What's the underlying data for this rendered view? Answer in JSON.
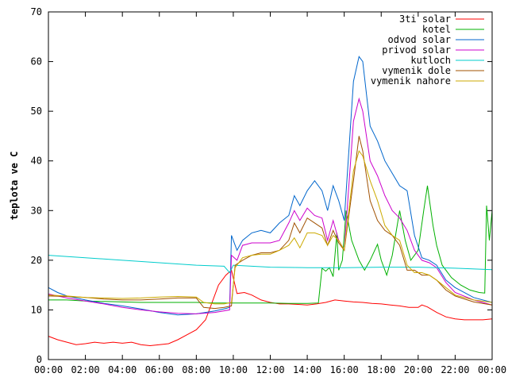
{
  "chart_data": {
    "type": "line",
    "title": "",
    "xlabel": "",
    "ylabel": "teplota ve C",
    "xlim": [
      0,
      24
    ],
    "ylim": [
      0,
      70
    ],
    "x_ticks": [
      "00:00",
      "02:00",
      "04:00",
      "06:00",
      "08:00",
      "10:00",
      "12:00",
      "14:00",
      "16:00",
      "18:00",
      "20:00",
      "22:00",
      "00:00"
    ],
    "y_ticks": [
      "0",
      "10",
      "20",
      "30",
      "40",
      "50",
      "60",
      "70"
    ],
    "grid": false,
    "legend_position": "top-right",
    "x_unit": "hours",
    "series": [
      {
        "name": "3ti solar",
        "color": "#ff0000",
        "points": [
          [
            0,
            4.7
          ],
          [
            0.5,
            4
          ],
          [
            1,
            3.5
          ],
          [
            1.5,
            3
          ],
          [
            2,
            3.2
          ],
          [
            2.5,
            3.5
          ],
          [
            3,
            3.3
          ],
          [
            3.5,
            3.5
          ],
          [
            4,
            3.3
          ],
          [
            4.5,
            3.5
          ],
          [
            5,
            3
          ],
          [
            5.5,
            2.8
          ],
          [
            6,
            3
          ],
          [
            6.5,
            3.2
          ],
          [
            7,
            4
          ],
          [
            7.5,
            5
          ],
          [
            8,
            6
          ],
          [
            8.5,
            8
          ],
          [
            8.8,
            11
          ],
          [
            9.2,
            15
          ],
          [
            9.6,
            17
          ],
          [
            9.9,
            18
          ],
          [
            10.2,
            13.3
          ],
          [
            10.6,
            13.5
          ],
          [
            11,
            13
          ],
          [
            11.5,
            12
          ],
          [
            12,
            11.5
          ],
          [
            12.5,
            11.2
          ],
          [
            13,
            11.2
          ],
          [
            13.5,
            11.1
          ],
          [
            14,
            11
          ],
          [
            14.5,
            11.2
          ],
          [
            15,
            11.5
          ],
          [
            15.5,
            12
          ],
          [
            16,
            11.8
          ],
          [
            16.5,
            11.6
          ],
          [
            17,
            11.5
          ],
          [
            17.5,
            11.3
          ],
          [
            18,
            11.2
          ],
          [
            18.5,
            11
          ],
          [
            19,
            10.8
          ],
          [
            19.5,
            10.5
          ],
          [
            20,
            10.5
          ],
          [
            20.2,
            11
          ],
          [
            20.5,
            10.6
          ],
          [
            21,
            9.5
          ],
          [
            21.5,
            8.6
          ],
          [
            22,
            8.2
          ],
          [
            22.5,
            8
          ],
          [
            23,
            8
          ],
          [
            23.5,
            8
          ],
          [
            24,
            8.2
          ]
        ]
      },
      {
        "name": "kotel",
        "color": "#00b000",
        "points": [
          [
            0,
            12
          ],
          [
            1,
            12
          ],
          [
            2,
            11.8
          ],
          [
            3,
            11.7
          ],
          [
            4,
            11.6
          ],
          [
            5,
            11.5
          ],
          [
            6,
            11.5
          ],
          [
            7,
            11.5
          ],
          [
            8,
            11.5
          ],
          [
            9,
            11.4
          ],
          [
            10,
            11.4
          ],
          [
            11,
            11.4
          ],
          [
            12,
            11.4
          ],
          [
            13,
            11.3
          ],
          [
            14,
            11.3
          ],
          [
            14.6,
            11.4
          ],
          [
            14.8,
            18.4
          ],
          [
            15,
            17.8
          ],
          [
            15.2,
            18.5
          ],
          [
            15.4,
            16.7
          ],
          [
            15.6,
            25.5
          ],
          [
            15.7,
            18
          ],
          [
            15.9,
            20
          ],
          [
            16.1,
            30
          ],
          [
            16.4,
            24
          ],
          [
            16.8,
            20
          ],
          [
            17.1,
            18
          ],
          [
            17.4,
            20
          ],
          [
            17.8,
            23.2
          ],
          [
            18,
            20
          ],
          [
            18.3,
            17
          ],
          [
            18.6,
            21
          ],
          [
            19,
            30
          ],
          [
            19.3,
            24
          ],
          [
            19.6,
            20
          ],
          [
            20,
            22
          ],
          [
            20.3,
            30
          ],
          [
            20.5,
            35
          ],
          [
            20.8,
            27
          ],
          [
            21,
            23
          ],
          [
            21.3,
            19
          ],
          [
            21.8,
            16.5
          ],
          [
            22.3,
            15
          ],
          [
            22.8,
            14
          ],
          [
            23.3,
            13.5
          ],
          [
            23.6,
            13.4
          ],
          [
            23.7,
            31
          ],
          [
            23.85,
            24
          ],
          [
            24,
            30
          ],
          [
            24.2,
            25
          ]
        ]
      },
      {
        "name": "odvod solar",
        "color": "#0066cc",
        "points": [
          [
            0,
            14.5
          ],
          [
            0.5,
            13.5
          ],
          [
            1,
            12.8
          ],
          [
            2,
            12
          ],
          [
            3,
            11.3
          ],
          [
            4,
            10.8
          ],
          [
            5,
            10.2
          ],
          [
            6,
            9.5
          ],
          [
            7,
            9.0
          ],
          [
            8,
            9.2
          ],
          [
            9,
            9.8
          ],
          [
            9.6,
            10.3
          ],
          [
            9.8,
            10.5
          ],
          [
            9.9,
            25
          ],
          [
            10.2,
            22
          ],
          [
            10.5,
            24
          ],
          [
            11,
            25.5
          ],
          [
            11.5,
            26
          ],
          [
            12,
            25.5
          ],
          [
            12.5,
            27.5
          ],
          [
            13,
            29
          ],
          [
            13.3,
            33
          ],
          [
            13.6,
            31
          ],
          [
            14,
            34
          ],
          [
            14.4,
            36
          ],
          [
            14.8,
            34
          ],
          [
            15.1,
            30
          ],
          [
            15.4,
            35
          ],
          [
            15.7,
            32
          ],
          [
            16,
            28
          ],
          [
            16.5,
            56
          ],
          [
            16.8,
            61
          ],
          [
            17,
            60
          ],
          [
            17.4,
            47
          ],
          [
            17.8,
            44
          ],
          [
            18.2,
            40
          ],
          [
            18.6,
            37.5
          ],
          [
            19,
            35
          ],
          [
            19.4,
            34
          ],
          [
            19.8,
            25
          ],
          [
            20.2,
            20.5
          ],
          [
            20.6,
            20
          ],
          [
            21,
            19
          ],
          [
            21.5,
            16
          ],
          [
            22,
            14.5
          ],
          [
            23,
            12.5
          ],
          [
            24,
            11.5
          ],
          [
            24.4,
            11.5
          ]
        ]
      },
      {
        "name": "privod solar",
        "color": "#cc00cc",
        "points": [
          [
            0,
            13.2
          ],
          [
            0.5,
            12.8
          ],
          [
            1,
            12.4
          ],
          [
            2,
            11.8
          ],
          [
            3,
            11.2
          ],
          [
            4,
            10.5
          ],
          [
            5,
            10
          ],
          [
            6,
            9.6
          ],
          [
            7,
            9.3
          ],
          [
            8,
            9.2
          ],
          [
            9,
            9.5
          ],
          [
            9.8,
            10
          ],
          [
            9.9,
            21
          ],
          [
            10.2,
            20
          ],
          [
            10.5,
            23
          ],
          [
            11,
            23.5
          ],
          [
            11.5,
            23.5
          ],
          [
            12,
            23.5
          ],
          [
            12.5,
            24
          ],
          [
            13,
            27.5
          ],
          [
            13.3,
            30
          ],
          [
            13.6,
            28
          ],
          [
            14,
            30.5
          ],
          [
            14.4,
            29
          ],
          [
            14.8,
            28.5
          ],
          [
            15.1,
            24
          ],
          [
            15.4,
            28
          ],
          [
            15.7,
            24
          ],
          [
            16,
            22
          ],
          [
            16.5,
            48
          ],
          [
            16.8,
            52.5
          ],
          [
            17,
            50
          ],
          [
            17.4,
            40
          ],
          [
            17.8,
            37
          ],
          [
            18.2,
            33
          ],
          [
            18.6,
            30
          ],
          [
            19,
            28.5
          ],
          [
            19.4,
            26
          ],
          [
            19.8,
            22
          ],
          [
            20.2,
            20
          ],
          [
            20.6,
            19.5
          ],
          [
            21,
            18.5
          ],
          [
            21.5,
            15.5
          ],
          [
            22,
            13.5
          ],
          [
            23,
            12
          ],
          [
            24,
            11
          ],
          [
            24.4,
            10.8
          ]
        ]
      },
      {
        "name": "kutloch",
        "color": "#00cccc",
        "points": [
          [
            0,
            21
          ],
          [
            2,
            20.5
          ],
          [
            4,
            20.0
          ],
          [
            6,
            19.5
          ],
          [
            8,
            19
          ],
          [
            9.5,
            18.8
          ],
          [
            9.8,
            17.5
          ],
          [
            10,
            19
          ],
          [
            11,
            18.8
          ],
          [
            12,
            18.6
          ],
          [
            14,
            18.5
          ],
          [
            16,
            18.5
          ],
          [
            18,
            18.6
          ],
          [
            20,
            18.6
          ],
          [
            22,
            18.4
          ],
          [
            24,
            18.1
          ],
          [
            24.4,
            18.1
          ]
        ]
      },
      {
        "name": "vymenik dole",
        "color": "#a05000",
        "points": [
          [
            0,
            12.8
          ],
          [
            1,
            12.7
          ],
          [
            2,
            12.5
          ],
          [
            3,
            12.2
          ],
          [
            4,
            12
          ],
          [
            5,
            12
          ],
          [
            6,
            12.2
          ],
          [
            7,
            12.4
          ],
          [
            8,
            12.4
          ],
          [
            8.4,
            10.5
          ],
          [
            9,
            10.3
          ],
          [
            9.5,
            10.5
          ],
          [
            9.9,
            10.8
          ],
          [
            10.1,
            19
          ],
          [
            10.5,
            20
          ],
          [
            11,
            21
          ],
          [
            11.5,
            21.5
          ],
          [
            12,
            21.5
          ],
          [
            12.5,
            22
          ],
          [
            13,
            24
          ],
          [
            13.3,
            27.5
          ],
          [
            13.6,
            25.5
          ],
          [
            14,
            28.5
          ],
          [
            14.4,
            27.5
          ],
          [
            14.8,
            26.5
          ],
          [
            15.1,
            23
          ],
          [
            15.4,
            26
          ],
          [
            15.7,
            23.5
          ],
          [
            16,
            22
          ],
          [
            16.5,
            36
          ],
          [
            16.8,
            45
          ],
          [
            17,
            42
          ],
          [
            17.4,
            32
          ],
          [
            17.8,
            28
          ],
          [
            18.2,
            26
          ],
          [
            18.6,
            25
          ],
          [
            19,
            23
          ],
          [
            19.4,
            18
          ],
          [
            19.8,
            18
          ],
          [
            20.2,
            17
          ],
          [
            20.6,
            17
          ],
          [
            21,
            16
          ],
          [
            21.5,
            14
          ],
          [
            22,
            12.8
          ],
          [
            23,
            11.6
          ],
          [
            24,
            11
          ],
          [
            24.4,
            10.8
          ]
        ]
      },
      {
        "name": "vymenik nahore",
        "color": "#ccaa00",
        "points": [
          [
            0,
            13
          ],
          [
            1,
            12.8
          ],
          [
            2,
            12.5
          ],
          [
            3,
            12.4
          ],
          [
            4,
            12.3
          ],
          [
            5,
            12.4
          ],
          [
            6,
            12.6
          ],
          [
            7,
            12.7
          ],
          [
            8,
            12.6
          ],
          [
            8.4,
            11.5
          ],
          [
            9,
            11.2
          ],
          [
            9.5,
            11.2
          ],
          [
            9.9,
            11.5
          ],
          [
            10.1,
            18.5
          ],
          [
            10.5,
            20.5
          ],
          [
            11,
            21
          ],
          [
            11.5,
            21.2
          ],
          [
            12,
            21.2
          ],
          [
            12.5,
            22
          ],
          [
            13,
            23
          ],
          [
            13.3,
            24.5
          ],
          [
            13.6,
            22.5
          ],
          [
            14,
            25.5
          ],
          [
            14.4,
            25.5
          ],
          [
            14.8,
            25
          ],
          [
            15.1,
            23
          ],
          [
            15.4,
            25
          ],
          [
            15.7,
            24
          ],
          [
            16,
            22
          ],
          [
            16.5,
            38
          ],
          [
            16.8,
            42
          ],
          [
            17,
            41
          ],
          [
            17.4,
            36
          ],
          [
            17.8,
            32
          ],
          [
            18.2,
            27
          ],
          [
            18.6,
            25
          ],
          [
            19,
            24
          ],
          [
            19.4,
            19
          ],
          [
            19.8,
            17.5
          ],
          [
            20.2,
            17.5
          ],
          [
            20.6,
            17
          ],
          [
            21,
            16
          ],
          [
            21.5,
            14.5
          ],
          [
            22,
            13
          ],
          [
            23,
            12
          ],
          [
            24,
            11.5
          ],
          [
            24.4,
            11.5
          ]
        ]
      }
    ]
  }
}
